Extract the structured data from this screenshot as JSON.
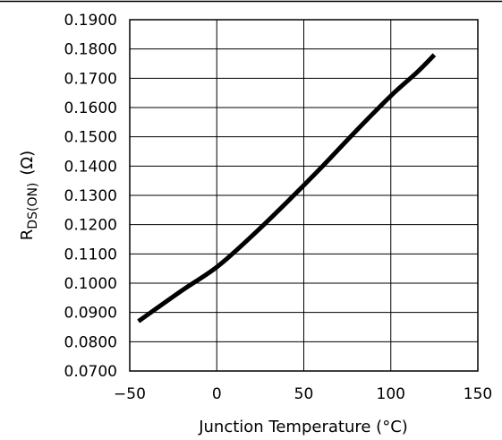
{
  "chart_data": {
    "type": "line",
    "title": "",
    "xlabel": "Junction Temperature (°C)",
    "ylabel": {
      "main": "R",
      "subscript": "DS(ON)",
      "unit": "(Ω)"
    },
    "xlim": [
      -50,
      150
    ],
    "ylim": [
      0.07,
      0.19
    ],
    "xticks": [
      "-50",
      "0",
      "50",
      "100",
      "150"
    ],
    "yticks": [
      "0.0700",
      "0.0800",
      "0.0900",
      "0.1000",
      "0.1100",
      "0.1200",
      "0.1300",
      "0.1400",
      "0.1500",
      "0.1600",
      "0.1700",
      "0.1800",
      "0.1900"
    ],
    "grid": true,
    "series": [
      {
        "color": "#000000",
        "x": [
          -45,
          -20,
          0,
          20,
          40,
          60,
          80,
          100,
          115,
          125
        ],
        "y": [
          0.087,
          0.0975,
          0.1055,
          0.116,
          0.1275,
          0.1395,
          0.152,
          0.164,
          0.172,
          0.178
        ]
      }
    ]
  }
}
